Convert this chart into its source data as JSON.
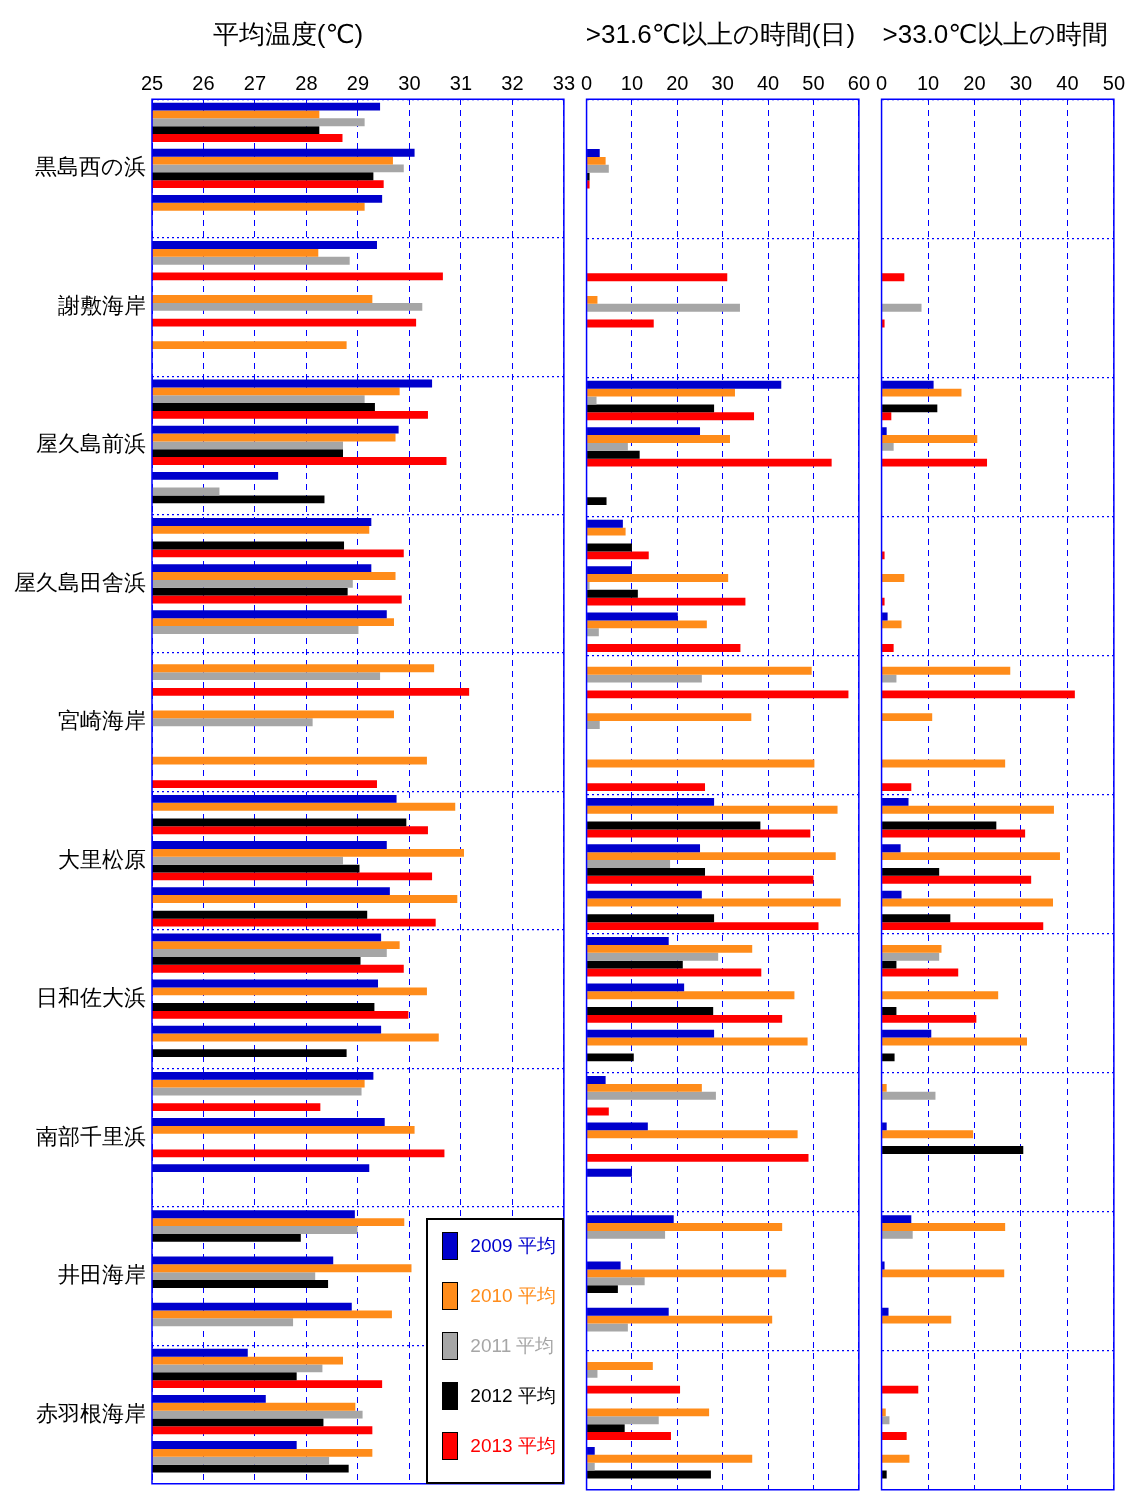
{
  "chart_data": [
    {
      "type": "bar",
      "orientation": "horizontal",
      "title": "平均温度(℃)",
      "categories": [
        null,
        "黒島西の浜",
        null,
        null,
        "謝敷海岸",
        null,
        null,
        "屋久島前浜",
        null,
        null,
        "屋久島田舎浜",
        null,
        null,
        "宮崎海岸",
        null,
        null,
        "大里松原",
        null,
        null,
        "日和佐大浜",
        null,
        null,
        "南部千里浜",
        null,
        null,
        "井田海岸",
        null,
        null,
        "赤羽根海岸",
        null
      ],
      "xlim": [
        25,
        33
      ],
      "xticks": [
        25,
        26,
        27,
        28,
        29,
        30,
        31,
        32,
        33
      ],
      "grid": true,
      "legend": "bottom right",
      "series": [
        {
          "name": "2009 平均",
          "color": "#0000cc",
          "values": [
            29.43,
            30.1,
            29.47,
            29.37,
            null,
            null,
            30.44,
            29.79,
            27.45,
            29.26,
            29.26,
            29.56,
            null,
            null,
            null,
            29.75,
            29.56,
            29.62,
            29.45,
            29.39,
            29.45,
            29.3,
            29.52,
            29.22,
            28.94,
            28.52,
            28.88,
            26.86,
            27.21,
            27.81
          ]
        },
        {
          "name": "2010 平均",
          "color": "#ff8c1a",
          "values": [
            28.25,
            29.68,
            29.13,
            28.23,
            29.28,
            28.78,
            29.81,
            29.73,
            null,
            29.22,
            29.73,
            29.7,
            30.48,
            29.7,
            30.34,
            30.89,
            31.06,
            30.93,
            29.81,
            30.34,
            30.57,
            29.13,
            30.1,
            null,
            29.9,
            30.04,
            29.66,
            28.71,
            28.95,
            29.28
          ]
        },
        {
          "name": "2011 平均",
          "color": "#a6a6a6",
          "values": [
            29.13,
            29.89,
            null,
            28.84,
            30.25,
            null,
            29.13,
            28.71,
            26.31,
            null,
            28.9,
            29.01,
            29.43,
            28.12,
            null,
            null,
            28.71,
            null,
            29.56,
            null,
            null,
            29.07,
            null,
            null,
            28.99,
            28.17,
            27.74,
            28.31,
            29.09,
            28.44
          ]
        },
        {
          "name": "2012 平均",
          "color": "#000000",
          "values": [
            28.25,
            29.3,
            null,
            null,
            null,
            null,
            29.33,
            28.71,
            28.35,
            28.73,
            28.8,
            null,
            null,
            null,
            null,
            29.94,
            29.03,
            29.18,
            29.05,
            29.32,
            28.78,
            null,
            null,
            null,
            27.89,
            28.42,
            null,
            27.81,
            28.33,
            28.82
          ]
        },
        {
          "name": "2013 平均",
          "color": "#ff0000",
          "values": [
            28.7,
            29.5,
            null,
            30.65,
            30.13,
            null,
            30.36,
            30.72,
            null,
            29.89,
            29.85,
            null,
            31.16,
            null,
            29.37,
            30.36,
            30.44,
            30.51,
            29.89,
            29.98,
            null,
            28.27,
            30.68,
            null,
            null,
            null,
            null,
            29.47,
            29.28,
            null
          ]
        }
      ]
    },
    {
      "type": "bar",
      "orientation": "horizontal",
      "title": ">31.6℃以上の時間(日)",
      "categories": [
        null,
        null,
        null,
        null,
        null,
        null,
        null,
        null,
        null,
        null,
        null,
        null,
        null,
        null,
        null,
        null,
        null,
        null,
        null,
        null,
        null,
        null,
        null,
        null,
        null,
        null,
        null,
        null,
        null,
        null
      ],
      "tick_labels": "x",
      "xlim": [
        0,
        60
      ],
      "xticks": [
        0,
        10,
        20,
        30,
        40,
        50,
        60
      ],
      "grid": true,
      "series": [
        {
          "color": "#0000cc",
          "values": [
            null,
            2.9,
            null,
            null,
            null,
            null,
            42.9,
            25,
            null,
            8,
            10,
            20.1,
            null,
            null,
            null,
            28.1,
            25,
            25.4,
            18.1,
            21.5,
            28.1,
            4.2,
            13.5,
            10,
            19.2,
            7.5,
            18.1,
            null,
            null,
            1.8
          ]
        },
        {
          "color": "#ff8c1a",
          "values": [
            null,
            4.2,
            null,
            null,
            2.4,
            null,
            32.7,
            31.6,
            null,
            8.6,
            31.2,
            26.5,
            49.6,
            36.3,
            50.2,
            55.3,
            54.9,
            56,
            36.5,
            45.8,
            48.7,
            25.4,
            46.5,
            null,
            43.1,
            44,
            40.9,
            14.6,
            27,
            36.5
          ]
        },
        {
          "color": "#a6a6a6",
          "values": [
            null,
            4.9,
            null,
            null,
            33.8,
            null,
            2.2,
            9.1,
            null,
            null,
            0.4,
            2.7,
            25.4,
            2.9,
            null,
            null,
            18.4,
            null,
            29,
            null,
            null,
            28.5,
            null,
            null,
            17.3,
            12.8,
            9.1,
            2.4,
            15.9,
            1.8
          ]
        },
        {
          "color": "#000000",
          "values": [
            null,
            0.4,
            null,
            null,
            null,
            null,
            28.1,
            11.7,
            4.4,
            10,
            11.3,
            null,
            null,
            null,
            null,
            38.3,
            26.1,
            28.1,
            21.2,
            27.9,
            10.4,
            null,
            null,
            null,
            null,
            6.9,
            null,
            null,
            8.4,
            27.4
          ]
        },
        {
          "color": "#ff0000",
          "values": [
            null,
            0.4,
            null,
            31,
            14.8,
            null,
            36.9,
            54,
            null,
            13.7,
            35,
            33.9,
            57.7,
            null,
            26.1,
            49.3,
            50,
            51.1,
            38.5,
            43.1,
            null,
            4.9,
            48.9,
            null,
            null,
            null,
            null,
            20.6,
            18.6,
            null
          ]
        }
      ]
    },
    {
      "type": "bar",
      "orientation": "horizontal",
      "title": ">33.0℃以上の時間",
      "categories": [
        null,
        null,
        null,
        null,
        null,
        null,
        null,
        null,
        null,
        null,
        null,
        null,
        null,
        null,
        null,
        null,
        null,
        null,
        null,
        null,
        null,
        null,
        null,
        null,
        null,
        null,
        null,
        null,
        null,
        null
      ],
      "tick_labels": "x",
      "xlim": [
        0,
        50
      ],
      "xticks": [
        0,
        10,
        20,
        30,
        40,
        50
      ],
      "grid": true,
      "series": [
        {
          "color": "#0000cc",
          "values": [
            null,
            null,
            null,
            null,
            null,
            null,
            11.2,
            1.1,
            null,
            null,
            null,
            1.3,
            null,
            null,
            null,
            5.8,
            4.1,
            4.3,
            null,
            null,
            10.7,
            null,
            1.1,
            null,
            6.4,
            0.3,
            1.5,
            null,
            null,
            null
          ]
        },
        {
          "color": "#ff8c1a",
          "values": [
            null,
            null,
            null,
            null,
            null,
            null,
            17.2,
            20.6,
            null,
            null,
            4.9,
            4.3,
            27.7,
            10.9,
            26.6,
            37.1,
            38.4,
            36.9,
            12.9,
            25.1,
            31.3,
            1.1,
            19.7,
            null,
            26.6,
            26.4,
            15,
            null,
            0.9,
            6
          ]
        },
        {
          "color": "#a6a6a6",
          "values": [
            null,
            null,
            null,
            null,
            8.6,
            null,
            null,
            2.6,
            null,
            null,
            null,
            null,
            3.2,
            null,
            null,
            null,
            null,
            null,
            12.4,
            null,
            null,
            11.6,
            null,
            null,
            6.7,
            null,
            null,
            null,
            1.7,
            null
          ]
        },
        {
          "color": "#000000",
          "values": [
            null,
            null,
            null,
            null,
            null,
            null,
            12,
            null,
            null,
            null,
            null,
            null,
            null,
            null,
            null,
            24.7,
            12.4,
            14.8,
            3.2,
            3.2,
            2.8,
            null,
            30.5,
            null,
            null,
            null,
            null,
            null,
            null,
            1.1
          ]
        },
        {
          "color": "#ff0000",
          "values": [
            null,
            null,
            null,
            4.9,
            0.4,
            null,
            2.1,
            22.7,
            null,
            0.3,
            0.3,
            2.6,
            41.6,
            null,
            6.4,
            30.9,
            32.2,
            34.8,
            16.5,
            20.4,
            null,
            null,
            null,
            null,
            null,
            null,
            null,
            7.9,
            5.4,
            null
          ]
        }
      ]
    }
  ]
}
